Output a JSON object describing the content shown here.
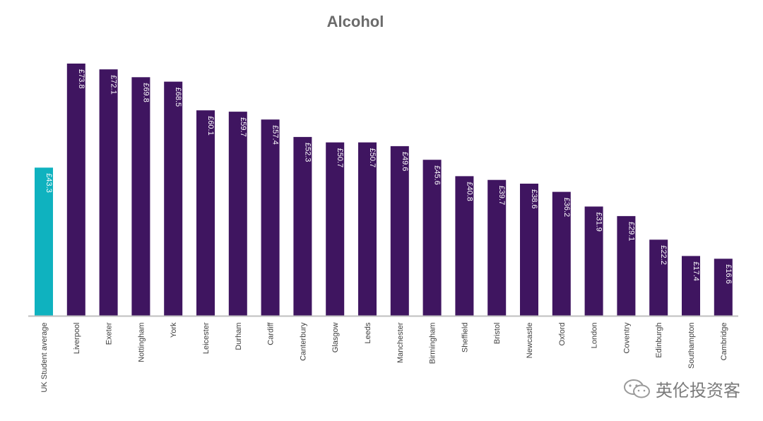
{
  "chart_data": {
    "type": "bar",
    "title": "Alcohol",
    "xlabel": "",
    "ylabel": "",
    "ylim": [
      0,
      80
    ],
    "grid": false,
    "legend": "none",
    "categories": [
      "UK Student average",
      "Liverpool",
      "Exeter",
      "Nottingham",
      "York",
      "Leicester",
      "Durham",
      "Cardiff",
      "Canterbury",
      "Glasgow",
      "Leeds",
      "Manchester",
      "Birmingham",
      "Sheffield",
      "Bristol",
      "Newcastle",
      "Oxford",
      "London",
      "Coventry",
      "Edinburgh",
      "Southampton",
      "Cambridge"
    ],
    "values": [
      43.3,
      73.8,
      72.1,
      69.8,
      68.5,
      60.1,
      59.7,
      57.4,
      52.3,
      50.7,
      50.7,
      49.6,
      45.6,
      40.8,
      39.7,
      38.6,
      36.2,
      31.9,
      29.1,
      22.2,
      17.4,
      16.6
    ],
    "data_labels": [
      "£43.3",
      "£73.8",
      "£72.1",
      "£69.8",
      "£68.5",
      "£60.1",
      "£59.7",
      "£57.4",
      "£52.3",
      "£50.7",
      "£50.7",
      "£49.6",
      "£45.6",
      "£40.8",
      "£39.7",
      "£38.6",
      "£36.2",
      "£31.9",
      "£29.1",
      "£22.2",
      "£17.4",
      "£16.6"
    ],
    "colors": {
      "highlight": "#0fb2bf",
      "bar": "#3f1560",
      "axis": "#bfbfbf",
      "label_text": "#ffffff",
      "tick_text": "#404040"
    }
  },
  "watermark": {
    "text": "英伦投资客",
    "icon": "wechat-icon"
  }
}
